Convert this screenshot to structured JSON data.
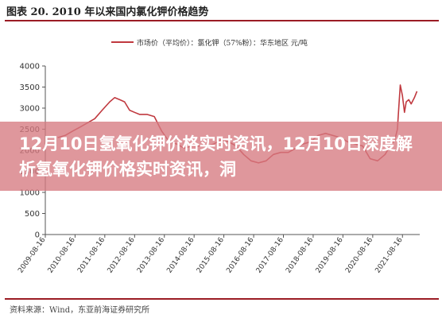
{
  "figure_title": "图表 20. 2010 年以来国内氯化钾价格趋势",
  "banner_text": "12月10日氢氧化钾价格实时资讯，12月10日深度解析氢氧化钾价格实时资讯，洞",
  "source_note": "资料来源：Wind，东亚前海证券研究所",
  "colors": {
    "series": "#c0393f",
    "title_rule": "#9b1c24",
    "banner": "#d67a80",
    "axis": "#555555"
  },
  "chart_data": {
    "type": "line",
    "ylim": [
      0,
      4000
    ],
    "y_ticks": [
      0,
      500,
      1000,
      1500,
      2000,
      2500,
      3000,
      3500,
      4000
    ],
    "x_tick_labels": [
      "2009-08-16",
      "2010-08-16",
      "2011-08-16",
      "2012-08-16",
      "2013-08-16",
      "2014-08-16",
      "2015-08-16",
      "2016-08-16",
      "2017-08-16",
      "2018-08-16",
      "2019-08-16",
      "2020-08-16",
      "2021-08-16"
    ],
    "x_range": [
      "2009-08-16",
      "2022-03-16"
    ],
    "series": [
      {
        "name": "市场价（平均价）：氯化钾（57%粉）：华东地区 元/吨",
        "x": [
          "2010-01-15",
          "2010-04-15",
          "2010-07-15",
          "2010-10-15",
          "2011-01-15",
          "2011-04-15",
          "2011-07-15",
          "2011-10-15",
          "2011-12-15",
          "2012-02-15",
          "2012-04-15",
          "2012-06-15",
          "2012-08-15",
          "2012-10-15",
          "2013-01-15",
          "2013-04-15",
          "2013-07-15",
          "2013-10-15",
          "2014-01-15",
          "2014-04-15",
          "2014-07-15",
          "2014-10-15",
          "2015-01-15",
          "2015-04-15",
          "2015-07-15",
          "2015-10-15",
          "2016-01-15",
          "2016-04-15",
          "2016-07-15",
          "2016-10-15",
          "2017-01-15",
          "2017-04-15",
          "2017-07-15",
          "2017-10-15",
          "2018-01-15",
          "2018-04-15",
          "2018-07-15",
          "2018-10-15",
          "2019-01-15",
          "2019-04-15",
          "2019-07-15",
          "2019-10-15",
          "2020-01-15",
          "2020-04-15",
          "2020-07-15",
          "2020-10-15",
          "2021-01-15",
          "2021-03-15",
          "2021-05-15",
          "2021-06-15",
          "2021-07-01",
          "2021-07-20",
          "2021-08-15",
          "2021-09-10",
          "2021-10-01",
          "2021-11-01",
          "2021-12-01",
          "2022-01-10",
          "2022-02-10"
        ],
        "values": [
          2300,
          2350,
          2450,
          2550,
          2650,
          2750,
          2950,
          3150,
          3250,
          3200,
          3150,
          2950,
          2900,
          2850,
          2850,
          2800,
          2450,
          2200,
          2150,
          2050,
          2100,
          2100,
          2100,
          2150,
          2250,
          2200,
          2100,
          1900,
          1750,
          1700,
          1750,
          1900,
          1950,
          1950,
          2050,
          2150,
          2200,
          2350,
          2400,
          2350,
          2300,
          2200,
          2150,
          2100,
          1800,
          1750,
          1900,
          2100,
          2250,
          2500,
          3000,
          3550,
          3300,
          2900,
          3150,
          3200,
          3100,
          3250,
          3400
        ]
      }
    ]
  }
}
